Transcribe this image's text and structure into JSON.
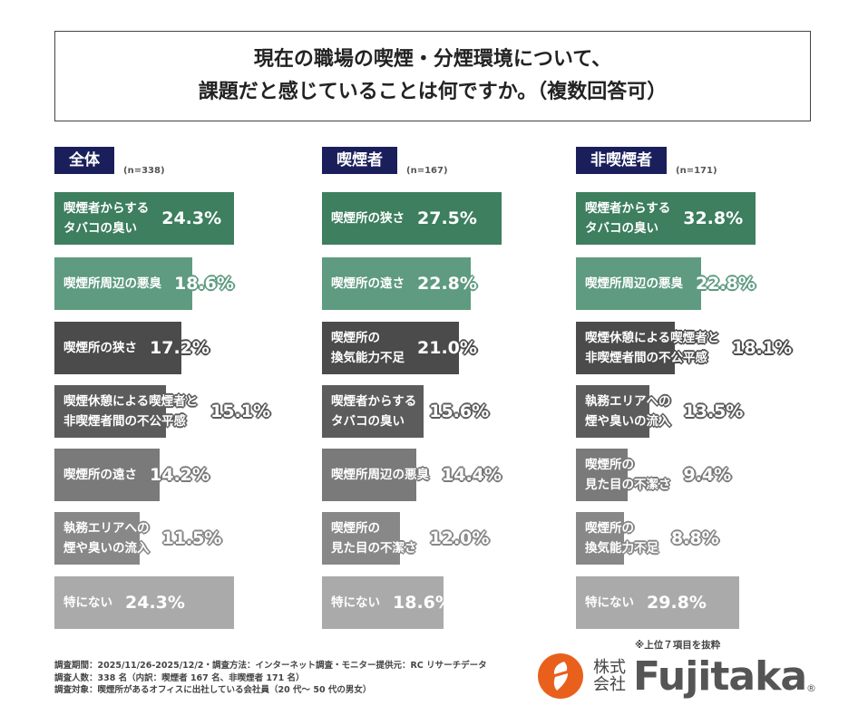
{
  "title": {
    "line1": "現在の職場の喫煙・分煙環境について、",
    "line2": "課題だと感じていることは何ですか。（複数回答可）"
  },
  "chart_data": [
    {
      "type": "bar",
      "orientation": "horizontal",
      "title": "全体",
      "n": "(n=338)",
      "categories": [
        "喫煙者からする\nタバコの臭い",
        "喫煙所周辺の悪臭",
        "喫煙所の狭さ",
        "喫煙休憩による喫煙者と\n非喫煙者間の不公平感",
        "喫煙所の遠さ",
        "執務エリアへの\n煙や臭いの流入",
        "特にない"
      ],
      "values": [
        24.3,
        18.6,
        17.2,
        15.1,
        14.2,
        11.5,
        24.3
      ],
      "labels": [
        "24.3%",
        "18.6%",
        "17.2%",
        "15.1%",
        "14.2%",
        "11.5%",
        "24.3%"
      ]
    },
    {
      "type": "bar",
      "orientation": "horizontal",
      "title": "喫煙者",
      "n": "(n=167)",
      "categories": [
        "喫煙所の狭さ",
        "喫煙所の遠さ",
        "喫煙所の\n換気能力不足",
        "喫煙者からする\nタバコの臭い",
        "喫煙所周辺の悪臭",
        "喫煙所の\n見た目の不潔さ",
        "特にない"
      ],
      "values": [
        27.5,
        22.8,
        21.0,
        15.6,
        14.4,
        12.0,
        18.6
      ],
      "labels": [
        "27.5%",
        "22.8%",
        "21.0%",
        "15.6%",
        "14.4%",
        "12.0%",
        "18.6%"
      ]
    },
    {
      "type": "bar",
      "orientation": "horizontal",
      "title": "非喫煙者",
      "n": "(n=171)",
      "categories": [
        "喫煙者からする\nタバコの臭い",
        "喫煙所周辺の悪臭",
        "喫煙休憩による喫煙者と\n非喫煙者間の不公平感",
        "執務エリアへの\n煙や臭いの流入",
        "喫煙所の\n見た目の不潔さ",
        "喫煙所の\n換気能力不足",
        "特にない"
      ],
      "values": [
        32.8,
        22.8,
        18.1,
        13.5,
        9.4,
        8.8,
        29.8
      ],
      "labels": [
        "32.8%",
        "22.8%",
        "18.1%",
        "13.5%",
        "9.4%",
        "8.8%",
        "29.8%"
      ]
    }
  ],
  "rank_colors": [
    "#3d7f5f",
    "#5f9b80",
    "#4b4b4b",
    "#5c5c5c",
    "#7a7a7a",
    "#888888",
    "#aaaaaa"
  ],
  "header_color": "#1a1f5c",
  "note": "※上位７項目を抜粋",
  "footer": [
    "調査期間：2025/11/26-2025/12/2・調査方法：インターネット調査・モニター提供元：RC リサーチデータ",
    "調査人数：338 名（内訳：喫煙者 167 名、非喫煙者 171 名）",
    "調査対象：喫煙所があるオフィスに出社している会社員（20 代～ 50 代の男女）"
  ],
  "logo": {
    "company_type": "株式会社",
    "name": "Fujitaka",
    "reg": "®"
  },
  "logo_color": "#e8601c"
}
